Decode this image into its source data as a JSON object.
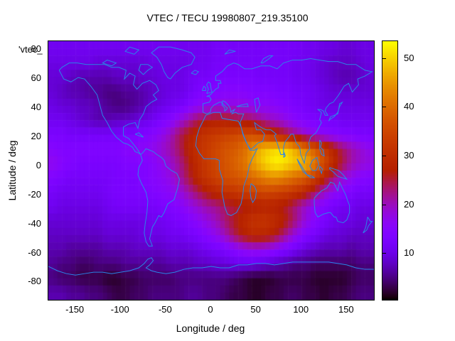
{
  "title": "VTEC / TECU 19980807_219.35100",
  "key_label": "'vtec_",
  "colors": {
    "background": "#ffffff",
    "border": "#000000",
    "text": "#000000",
    "coastline": "#2b84e8"
  },
  "axes": {
    "x": {
      "label": "Longitude / deg",
      "ticks": [
        -150,
        -100,
        -50,
        0,
        50,
        100,
        150
      ]
    },
    "y": {
      "label": "Latitude / deg",
      "ticks": [
        80,
        60,
        40,
        20,
        0,
        -20,
        -40,
        -60,
        -80
      ]
    },
    "colorbar": {
      "ticks": [
        10,
        20,
        30,
        40,
        50
      ]
    }
  },
  "chart_data": {
    "type": "heatmap",
    "title": "VTEC / TECU 19980807_219.35100",
    "xlabel": "Longitude / deg",
    "ylabel": "Latitude / deg",
    "units": "TECU",
    "xlim": [
      -180,
      180
    ],
    "ylim": [
      -90,
      90
    ],
    "color_range": [
      0.6,
      53.6
    ],
    "palette": "gnuplot-pm3d-rgbformulae-7-5-15",
    "legend_position": "colorbar-right",
    "grid": false,
    "lon_centers": [
      -175,
      -165,
      -155,
      -145,
      -135,
      -125,
      -115,
      -105,
      -95,
      -85,
      -75,
      -65,
      -55,
      -45,
      -35,
      -25,
      -15,
      -5,
      5,
      15,
      25,
      35,
      45,
      55,
      65,
      75,
      85,
      95,
      105,
      115,
      125,
      135,
      145,
      155,
      165,
      175
    ],
    "lat_centers": [
      85,
      75,
      65,
      55,
      45,
      35,
      25,
      15,
      5,
      -5,
      -15,
      -25,
      -35,
      -45,
      -55,
      -65,
      -75,
      -85
    ],
    "values": [
      [
        11,
        11,
        11,
        11,
        11,
        11,
        11,
        11,
        11,
        11,
        11,
        11,
        11,
        11,
        11,
        11,
        11,
        11,
        12,
        12,
        12,
        12,
        12,
        12,
        12,
        12,
        12,
        12,
        11,
        11,
        10,
        10,
        9,
        9,
        10,
        10
      ],
      [
        10,
        10,
        10,
        10,
        10,
        9,
        9,
        9,
        9,
        9,
        9,
        10,
        10,
        10,
        10,
        10,
        11,
        11,
        12,
        12,
        12,
        12,
        12,
        12,
        12,
        12,
        12,
        11,
        11,
        10,
        9,
        8,
        8,
        8,
        9,
        10
      ],
      [
        9,
        9,
        8,
        7,
        7,
        7,
        7,
        8,
        8,
        8,
        9,
        9,
        10,
        10,
        10,
        11,
        12,
        12,
        13,
        13,
        13,
        13,
        13,
        12,
        12,
        12,
        12,
        11,
        11,
        10,
        9,
        8,
        7,
        7,
        8,
        9
      ],
      [
        9,
        8,
        7,
        7,
        6,
        6,
        5,
        5,
        6,
        6,
        7,
        8,
        9,
        10,
        10,
        11,
        13,
        14,
        14,
        15,
        15,
        15,
        14,
        14,
        14,
        13,
        13,
        12,
        12,
        11,
        10,
        9,
        9,
        9,
        9,
        9
      ],
      [
        10,
        9,
        9,
        8,
        8,
        7,
        6,
        5,
        5,
        6,
        7,
        9,
        10,
        11,
        12,
        14,
        16,
        17,
        18,
        18,
        18,
        18,
        17,
        16,
        16,
        15,
        14,
        13,
        12,
        11,
        10,
        10,
        10,
        10,
        10,
        10
      ],
      [
        11,
        11,
        10,
        9,
        8,
        7,
        7,
        8,
        8,
        9,
        10,
        11,
        13,
        15,
        18,
        21,
        24,
        26,
        27,
        27,
        26,
        25,
        24,
        22,
        20,
        19,
        17,
        15,
        14,
        13,
        12,
        12,
        11,
        11,
        11,
        11
      ],
      [
        13,
        13,
        12,
        12,
        12,
        12,
        12,
        12,
        13,
        13,
        14,
        15,
        17,
        20,
        24,
        27,
        30,
        32,
        33,
        34,
        35,
        36,
        36,
        34,
        31,
        28,
        25,
        22,
        19,
        17,
        16,
        15,
        14,
        14,
        13,
        13
      ],
      [
        15,
        14,
        14,
        14,
        14,
        14,
        14,
        14,
        15,
        16,
        16,
        17,
        19,
        21,
        24,
        28,
        31,
        33,
        35,
        37,
        38,
        40,
        44,
        48,
        50,
        51,
        50,
        46,
        42,
        38,
        33,
        28,
        24,
        21,
        19,
        17
      ],
      [
        17,
        15,
        14,
        13,
        13,
        13,
        13,
        13,
        14,
        14,
        14,
        15,
        17,
        19,
        22,
        26,
        30,
        33,
        35,
        37,
        39,
        41,
        45,
        49,
        52,
        53,
        51,
        49,
        48,
        42,
        36,
        30,
        25,
        21,
        19,
        18
      ],
      [
        14,
        13,
        12,
        12,
        12,
        12,
        12,
        13,
        13,
        13,
        14,
        15,
        16,
        18,
        21,
        25,
        29,
        32,
        34,
        36,
        37,
        38,
        40,
        42,
        44,
        44,
        42,
        40,
        38,
        33,
        28,
        23,
        19,
        17,
        15,
        14
      ],
      [
        12,
        11,
        11,
        11,
        11,
        11,
        12,
        13,
        13,
        13,
        13,
        14,
        15,
        16,
        18,
        21,
        24,
        27,
        29,
        31,
        32,
        33,
        34,
        35,
        35,
        34,
        33,
        31,
        28,
        24,
        20,
        17,
        15,
        13,
        12,
        12
      ],
      [
        11,
        10,
        10,
        10,
        10,
        10,
        11,
        12,
        12,
        12,
        12,
        12,
        13,
        14,
        15,
        17,
        19,
        21,
        22,
        24,
        25,
        26,
        27,
        28,
        28,
        27,
        25,
        22,
        19,
        16,
        14,
        12,
        11,
        11,
        10,
        10
      ],
      [
        9,
        9,
        9,
        9,
        9,
        9,
        10,
        10,
        10,
        10,
        10,
        11,
        11,
        12,
        13,
        14,
        16,
        18,
        20,
        23,
        26,
        29,
        31,
        32,
        31,
        29,
        26,
        22,
        18,
        15,
        13,
        11,
        10,
        10,
        9,
        9
      ],
      [
        8,
        8,
        8,
        8,
        8,
        8,
        9,
        9,
        9,
        9,
        10,
        10,
        10,
        11,
        11,
        12,
        13,
        15,
        17,
        20,
        24,
        27,
        29,
        29,
        28,
        25,
        21,
        17,
        14,
        12,
        10,
        9,
        9,
        8,
        8,
        8
      ],
      [
        7,
        7,
        6,
        6,
        6,
        6,
        7,
        7,
        7,
        8,
        8,
        8,
        8,
        9,
        9,
        9,
        10,
        11,
        12,
        13,
        15,
        17,
        18,
        18,
        17,
        15,
        13,
        11,
        9,
        8,
        7,
        7,
        7,
        6,
        7,
        7
      ],
      [
        6,
        5,
        5,
        4,
        4,
        5,
        5,
        5,
        6,
        6,
        6,
        6,
        6,
        7,
        7,
        7,
        8,
        8,
        9,
        9,
        10,
        10,
        10,
        9,
        8,
        7,
        6,
        5,
        5,
        4,
        4,
        4,
        4,
        4,
        5,
        5
      ],
      [
        5,
        4,
        4,
        3,
        3,
        3,
        2,
        2,
        3,
        3,
        4,
        4,
        4,
        4,
        5,
        5,
        5,
        5,
        5,
        5,
        4,
        3,
        2,
        2,
        2,
        3,
        3,
        3,
        3,
        2,
        2,
        2,
        2,
        3,
        4,
        4
      ],
      [
        7,
        7,
        6,
        6,
        5,
        5,
        4,
        3,
        3,
        4,
        4,
        5,
        5,
        5,
        5,
        6,
        6,
        5,
        5,
        4,
        3,
        3,
        2,
        2,
        3,
        3,
        4,
        4,
        3,
        3,
        2,
        3,
        3,
        4,
        5,
        5
      ]
    ]
  },
  "coastlines": [
    [
      -168,
      66,
      -163,
      60,
      -155,
      58,
      -147,
      61,
      -140,
      60,
      -133,
      55,
      -126,
      49,
      -123,
      42,
      -120,
      35,
      -115,
      30,
      -110,
      24,
      -105,
      20,
      -97,
      16,
      -92,
      15,
      -87,
      13,
      -84,
      10,
      -80,
      9,
      -78,
      8,
      -82,
      12,
      -87,
      16,
      -91,
      19,
      -97,
      21,
      -97,
      27,
      -91,
      29,
      -84,
      30,
      -81,
      26,
      -79,
      32,
      -75,
      36,
      -72,
      41,
      -66,
      44,
      -60,
      46,
      -64,
      49,
      -58,
      52,
      -61,
      56,
      -68,
      59,
      -76,
      57,
      -82,
      53,
      -86,
      56,
      -84,
      62,
      -90,
      64,
      -96,
      60,
      -94,
      66,
      -102,
      68,
      -110,
      68,
      -118,
      70,
      -128,
      70,
      -138,
      70,
      -148,
      71,
      -157,
      71,
      -165,
      68,
      -168,
      66
    ],
    [
      -45,
      60,
      -40,
      64,
      -32,
      68,
      -22,
      70,
      -18,
      75,
      -22,
      78,
      -32,
      80,
      -45,
      82,
      -58,
      82,
      -66,
      78,
      -60,
      75,
      -55,
      70,
      -52,
      65,
      -48,
      61,
      -45,
      60
    ],
    [
      -75,
      63,
      -70,
      66,
      -65,
      68,
      -70,
      70,
      -78,
      70,
      -80,
      66,
      -75,
      63
    ],
    [
      -110,
      69,
      -105,
      71,
      -115,
      73,
      -120,
      71,
      -110,
      69
    ],
    [
      -85,
      77,
      -80,
      80,
      -90,
      82,
      -95,
      79,
      -85,
      77
    ],
    [
      -22,
      64,
      -18,
      66,
      -14,
      65,
      -17,
      63,
      -22,
      64
    ],
    [
      -5,
      50,
      -3,
      53,
      -5,
      56,
      -3,
      58,
      -1,
      57,
      0,
      53,
      1,
      51,
      -5,
      50
    ],
    [
      -10,
      52,
      -8,
      55,
      -6,
      54,
      -6,
      52,
      -10,
      52
    ],
    [
      -78,
      8,
      -76,
      4,
      -80,
      -1,
      -81,
      -6,
      -77,
      -12,
      -72,
      -18,
      -70,
      -24,
      -71,
      -32,
      -73,
      -40,
      -74,
      -46,
      -72,
      -52,
      -69,
      -55,
      -65,
      -55,
      -68,
      -50,
      -65,
      -42,
      -62,
      -39,
      -58,
      -34,
      -55,
      -35,
      -52,
      -32,
      -48,
      -26,
      -41,
      -23,
      -37,
      -15,
      -35,
      -9,
      -38,
      -5,
      -44,
      -3,
      -50,
      0,
      -52,
      4,
      -55,
      6,
      -60,
      8,
      -64,
      10,
      -68,
      11,
      -72,
      12,
      -76,
      9,
      -78,
      8
    ],
    [
      -84,
      22,
      -80,
      23,
      -75,
      20,
      -80,
      21,
      -84,
      22
    ],
    [
      -6,
      35,
      3,
      37,
      10,
      37,
      12,
      33,
      20,
      32,
      30,
      31,
      33,
      27,
      36,
      21,
      40,
      15,
      43,
      11,
      48,
      11,
      51,
      12,
      46,
      6,
      42,
      0,
      40,
      -7,
      36,
      -14,
      35,
      -20,
      33,
      -26,
      28,
      -32,
      22,
      -34,
      18,
      -33,
      15,
      -28,
      12,
      -18,
      13,
      -10,
      9,
      -2,
      9,
      4,
      5,
      5,
      -2,
      5,
      -8,
      5,
      -13,
      9,
      -17,
      14,
      -16,
      20,
      -13,
      26,
      -9,
      31,
      -6,
      35
    ],
    [
      44,
      -12,
      48,
      -14,
      50,
      -17,
      49,
      -22,
      46,
      -25,
      44,
      -22,
      43,
      -17,
      44,
      -12
    ],
    [
      -9,
      37,
      -9,
      43,
      -2,
      44,
      0,
      46,
      -2,
      48,
      -5,
      48,
      -1,
      49,
      2,
      51,
      5,
      53,
      8,
      54,
      8,
      57,
      11,
      57,
      10,
      59,
      5,
      59,
      5,
      62,
      12,
      65,
      18,
      69,
      25,
      71,
      30,
      70,
      37,
      67,
      45,
      67,
      55,
      69,
      65,
      69,
      73,
      67,
      80,
      71,
      90,
      73,
      100,
      73,
      110,
      74,
      120,
      73,
      130,
      72,
      140,
      72,
      150,
      70,
      160,
      70,
      170,
      66,
      178,
      65,
      170,
      62,
      162,
      60,
      163,
      56,
      156,
      51,
      152,
      57,
      147,
      55,
      141,
      49,
      135,
      44,
      131,
      43,
      127,
      40,
      126,
      38,
      129,
      35,
      126,
      35,
      124,
      38,
      121,
      39,
      118,
      39,
      122,
      37,
      120,
      32,
      122,
      30,
      116,
      23,
      110,
      20,
      108,
      16,
      109,
      12,
      105,
      9,
      103,
      2,
      101,
      5,
      99,
      8,
      98,
      13,
      94,
      16,
      91,
      22,
      88,
      22,
      86,
      20,
      82,
      17,
      80,
      13,
      80,
      8,
      77,
      8,
      73,
      16,
      70,
      21,
      72,
      22,
      68,
      24,
      66,
      25,
      61,
      25,
      57,
      26,
      52,
      28,
      48,
      30,
      50,
      25,
      55,
      25,
      59,
      22,
      57,
      17,
      52,
      16,
      45,
      12,
      43,
      12,
      39,
      16,
      35,
      22,
      32,
      30,
      34,
      33,
      36,
      36,
      30,
      36,
      27,
      37,
      23,
      36,
      26,
      39,
      23,
      38,
      22,
      37,
      21,
      40,
      19,
      42,
      16,
      44,
      13,
      45,
      12,
      44,
      14,
      42,
      16,
      41,
      18,
      40,
      17,
      39,
      15,
      38,
      15,
      40,
      12,
      42,
      12,
      44,
      9,
      44,
      6,
      43,
      3,
      42,
      0,
      40,
      -1,
      37,
      -5,
      36,
      -9,
      37
    ],
    [
      28,
      41,
      33,
      42,
      40,
      43,
      41,
      41,
      35,
      41,
      28,
      41
    ],
    [
      50,
      37,
      54,
      42,
      52,
      47,
      48,
      46,
      49,
      41,
      50,
      37
    ],
    [
      15,
      77,
      20,
      80,
      27,
      79,
      20,
      78,
      15,
      77
    ],
    [
      55,
      71,
      58,
      74,
      64,
      76,
      68,
      76,
      62,
      73,
      57,
      71,
      55,
      71
    ],
    [
      130,
      31,
      132,
      34,
      136,
      35,
      140,
      36,
      141,
      39,
      142,
      43,
      145,
      44,
      142,
      41,
      140,
      37,
      136,
      34,
      131,
      32,
      130,
      31
    ],
    [
      120,
      18,
      122,
      16,
      121,
      13,
      124,
      11,
      125,
      7,
      122,
      8,
      120,
      12,
      120,
      18
    ],
    [
      95,
      5,
      100,
      0,
      104,
      -4,
      106,
      -6,
      102,
      -4,
      97,
      2,
      95,
      5
    ],
    [
      106,
      -6,
      112,
      -7,
      114,
      -8,
      110,
      -8,
      106,
      -6
    ],
    [
      109,
      0,
      112,
      4,
      117,
      6,
      119,
      1,
      116,
      -3,
      112,
      -3,
      109,
      0
    ],
    [
      120,
      0,
      123,
      -2,
      122,
      -5,
      120,
      -2,
      120,
      0
    ],
    [
      131,
      -1,
      136,
      -2,
      141,
      -3,
      146,
      -6,
      150,
      -9,
      145,
      -8,
      140,
      -7,
      135,
      -4,
      131,
      -2,
      131,
      -1
    ],
    [
      80,
      6,
      81,
      9,
      82,
      7,
      80,
      6
    ],
    [
      114,
      -22,
      114,
      -26,
      115,
      -32,
      118,
      -35,
      124,
      -33,
      130,
      -32,
      132,
      -32,
      136,
      -35,
      138,
      -35,
      140,
      -38,
      146,
      -39,
      150,
      -37,
      153,
      -32,
      153,
      -27,
      151,
      -24,
      149,
      -20,
      145,
      -15,
      142,
      -11,
      140,
      -17,
      136,
      -12,
      132,
      -11,
      128,
      -15,
      122,
      -17,
      117,
      -20,
      114,
      -22
    ],
    [
      173,
      -35,
      176,
      -38,
      178,
      -38,
      174,
      -41,
      172,
      -44,
      168,
      -46,
      171,
      -42,
      173,
      -35
    ],
    [
      -180,
      -69,
      -170,
      -72,
      -160,
      -74,
      -150,
      -75,
      -140,
      -74,
      -130,
      -73,
      -120,
      -73,
      -110,
      -74,
      -100,
      -73,
      -90,
      -72,
      -80,
      -70,
      -74,
      -67,
      -70,
      -64,
      -66,
      -63,
      -64,
      -65,
      -68,
      -68,
      -72,
      -70,
      -66,
      -72,
      -60,
      -73,
      -50,
      -74,
      -40,
      -73,
      -30,
      -71,
      -20,
      -70,
      -10,
      -70,
      0,
      -69,
      10,
      -70,
      20,
      -70,
      30,
      -68,
      40,
      -68,
      50,
      -67,
      60,
      -67,
      70,
      -68,
      80,
      -67,
      90,
      -66,
      100,
      -66,
      110,
      -66,
      120,
      -66,
      130,
      -66,
      140,
      -67,
      150,
      -68,
      160,
      -70,
      170,
      -71,
      180,
      -71
    ]
  ]
}
